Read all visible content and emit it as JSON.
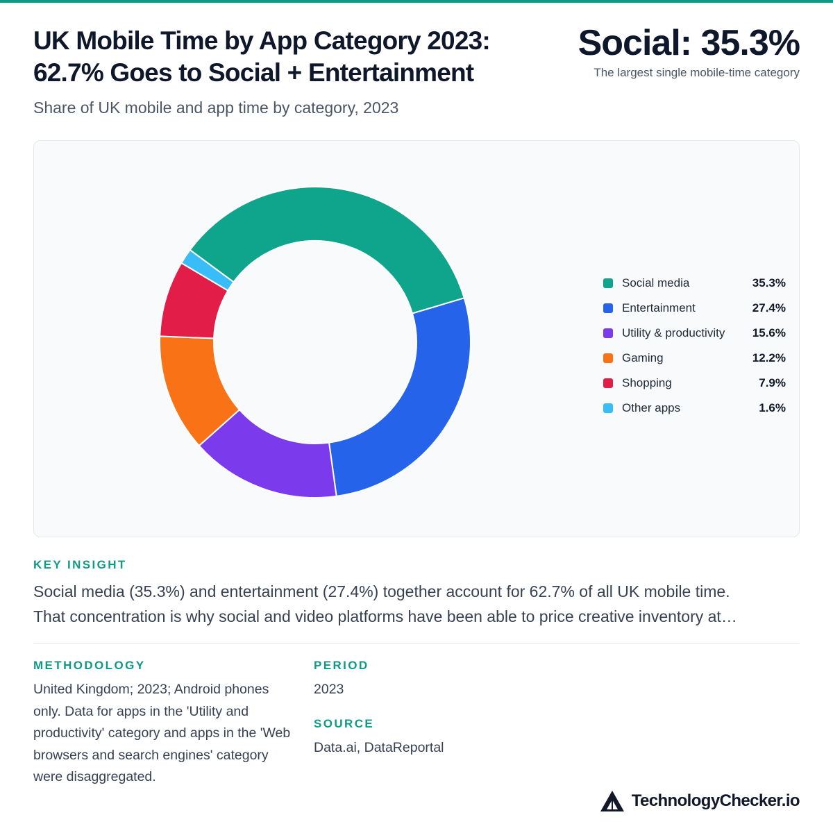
{
  "header": {
    "title_line1": "UK Mobile Time by App Category 2023:",
    "title_line2": "62.7% Goes to Social + Entertainment",
    "subtitle": "Share of UK mobile and app time by category, 2023",
    "kpi_value": "Social: 35.3%",
    "kpi_note": "The largest single mobile-time category"
  },
  "chart_data": {
    "type": "pie",
    "variant": "donut",
    "title": "",
    "categories": [
      "Social media",
      "Entertainment",
      "Utility & productivity",
      "Gaming",
      "Shopping",
      "Other apps"
    ],
    "values": [
      35.3,
      27.4,
      15.6,
      12.2,
      7.9,
      1.6
    ],
    "value_labels": [
      "35.3%",
      "27.4%",
      "15.6%",
      "12.2%",
      "7.9%",
      "1.6%"
    ],
    "colors": [
      "#0ea58c",
      "#2563eb",
      "#7c3aed",
      "#f97316",
      "#e11d48",
      "#38bdf8"
    ],
    "legend_position": "right"
  },
  "insight": {
    "label": "KEY INSIGHT",
    "line1": "Social media (35.3%) and entertainment (27.4%) together account for 62.7% of all UK mobile time.",
    "line2": "That concentration is why social and video platforms have been able to price creative inventory at…"
  },
  "methodology": {
    "label": "METHODOLOGY",
    "text": "United Kingdom; 2023; Android phones only. Data for apps in the 'Utility and productivity' category and apps in the 'Web browsers and search engines' category were disaggregated."
  },
  "period": {
    "label": "PERIOD",
    "value": "2023"
  },
  "source": {
    "label": "SOURCE",
    "value": "Data.ai, DataReportal"
  },
  "brand": {
    "logo_icon": "triangle-logo-icon",
    "name": "TechnologyChecker.io"
  }
}
